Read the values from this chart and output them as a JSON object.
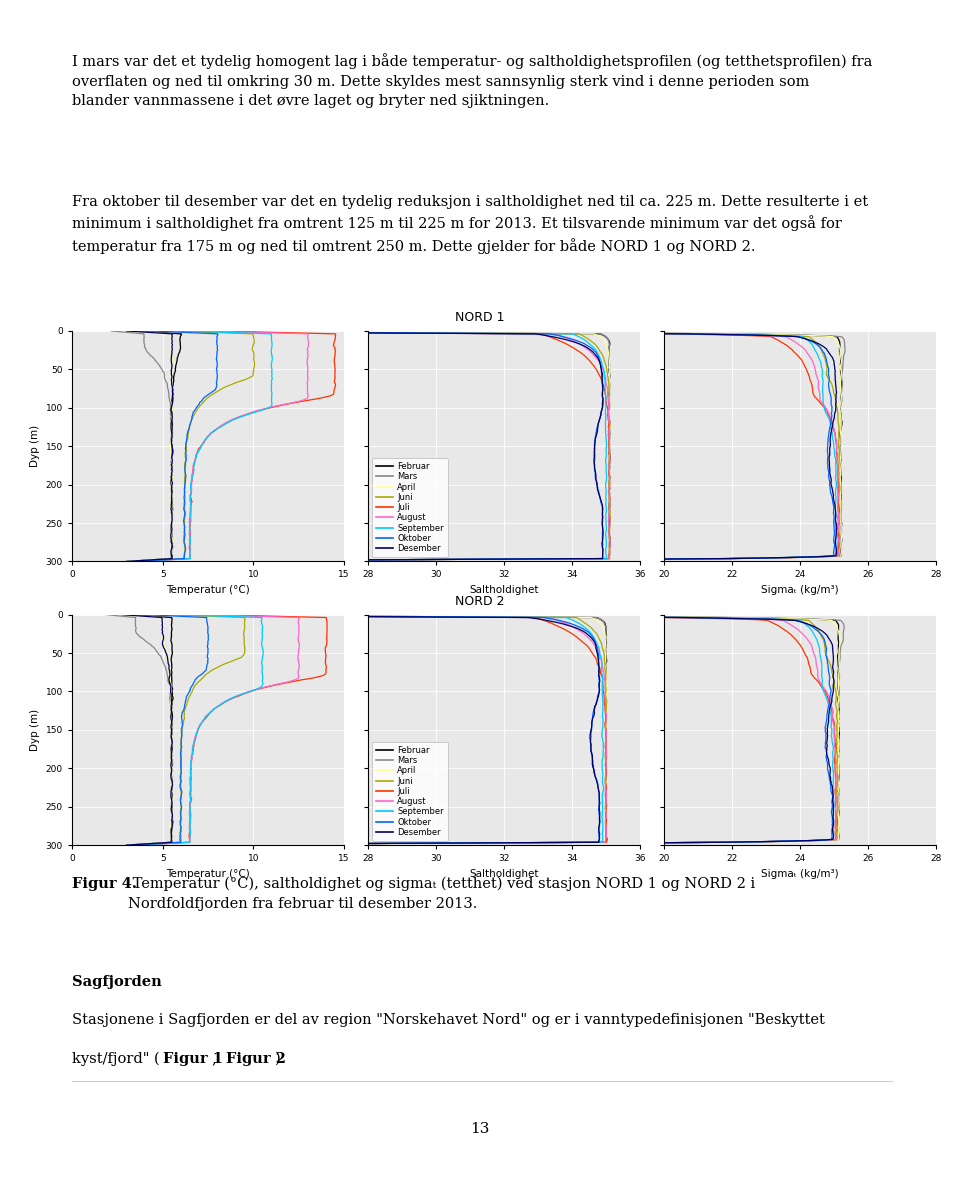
{
  "para1_line1": "I mars var det et tydelig homogent lag i både temperatur- og saltholdighetsprofilen (og tetthetsprofilen) fra",
  "para1_line2": "overflaten og ned til omkring 30 m. Dette skyldes mest sannsynlig sterk vind i denne perioden som",
  "para1_line3": "blander vannmassene i det øvre laget og bryter ned sjiktningen.",
  "para2_line1": "Fra oktober til desember var det en tydelig reduksjon i saltholdighet ned til ca. 225 m. Dette resulterte i et",
  "para2_line2": "minimum i saltholdighet fra omtrent 125 m til 225 m for 2013. Et tilsvarende minimum var det også for",
  "para2_line3": "temperatur fra 175 m og ned til omtrent 250 m. Dette gjelder for både NORD 1 og NORD 2.",
  "title_nord1": "NORD 1",
  "title_nord2": "NORD 2",
  "xlabel_temp": "Temperatur (°C)",
  "xlabel_salt": "Saltholdighet",
  "xlabel_sigma_n1": "Sigmaₜ (kg/m³)",
  "xlabel_sigma_n2": "Sigmaₜ (kg/m³)",
  "ylabel": "Dyp (m)",
  "months": [
    "Februar",
    "Mars",
    "April",
    "Juni",
    "Juli",
    "August",
    "September",
    "Oktober",
    "Desember"
  ],
  "colors": [
    "#000000",
    "#888888",
    "#ffff99",
    "#aaaa00",
    "#ff3300",
    "#ff66cc",
    "#00ccff",
    "#0066ff",
    "#000066"
  ],
  "figcaption_bold": "Figur 4.",
  "figcaption_rest": " Temperatur (°C), saltholdighet og sigmaₜ (tetthet) ved stasjon NORD 1 og NORD 2 i",
  "figcaption_line2": "Nordfoldfjorden fra februar til desember 2013.",
  "sagfjorden_title": "Sagfjorden",
  "sagfjorden_line1": "Stasjonene i Sagfjorden er del av region \"Norskehavet Nord\" og er i vanntypedefinisjonen \"Beskyttet",
  "sagfjorden_line2": "kyst/fjord\" (",
  "sagfjorden_bold1": "Figur 1",
  "sagfjorden_comma": ", ",
  "sagfjorden_bold2": "Figur 2",
  "sagfjorden_end": ").",
  "page_number": "13",
  "depth_range": [
    0,
    300
  ],
  "temp_xlim": [
    0,
    15
  ],
  "salt_xlim": [
    28,
    36
  ],
  "sigma_xlim": [
    20,
    28
  ],
  "background": "#ffffff",
  "plot_bg": "#e8e8e8",
  "grid_color": "#ffffff"
}
